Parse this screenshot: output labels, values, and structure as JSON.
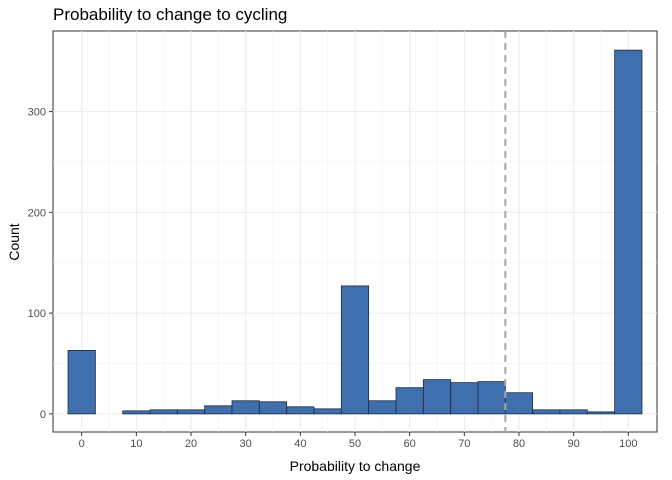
{
  "chart_data": {
    "type": "bar",
    "title": "Probability to change to cycling",
    "xlabel": "Probability to change",
    "ylabel": "Count",
    "bin_width": 5,
    "bins": [
      {
        "center": 0,
        "count": 63
      },
      {
        "center": 5,
        "count": 0
      },
      {
        "center": 10,
        "count": 3
      },
      {
        "center": 15,
        "count": 4
      },
      {
        "center": 20,
        "count": 4
      },
      {
        "center": 25,
        "count": 8
      },
      {
        "center": 30,
        "count": 13
      },
      {
        "center": 35,
        "count": 12
      },
      {
        "center": 40,
        "count": 7
      },
      {
        "center": 45,
        "count": 5
      },
      {
        "center": 50,
        "count": 127
      },
      {
        "center": 55,
        "count": 13
      },
      {
        "center": 60,
        "count": 26
      },
      {
        "center": 65,
        "count": 34
      },
      {
        "center": 70,
        "count": 31
      },
      {
        "center": 75,
        "count": 32
      },
      {
        "center": 80,
        "count": 21
      },
      {
        "center": 85,
        "count": 4
      },
      {
        "center": 90,
        "count": 4
      },
      {
        "center": 95,
        "count": 2
      },
      {
        "center": 100,
        "count": 361
      }
    ],
    "xlim": [
      -5.25,
      105.25
    ],
    "ylim": [
      -18,
      380
    ],
    "x_ticks": [
      0,
      10,
      20,
      30,
      40,
      50,
      60,
      70,
      80,
      90,
      100
    ],
    "y_ticks": [
      0,
      100,
      200,
      300
    ],
    "reference_line_x": 77.5,
    "grid": true,
    "bar_fill": "#3f6fad",
    "bar_stroke": "#1c2c44",
    "reference_line_color": "#a6a6a6"
  }
}
